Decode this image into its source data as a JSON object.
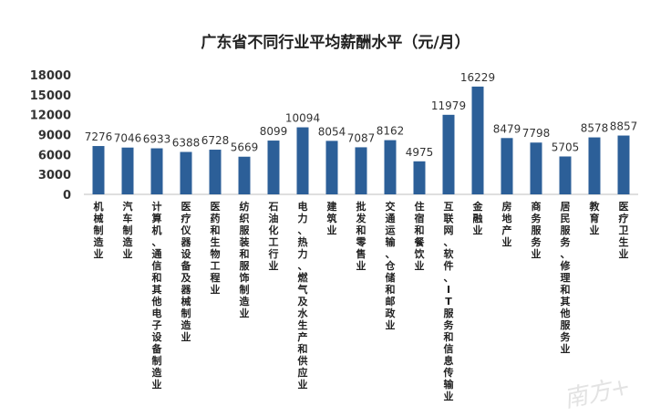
{
  "chart_data": {
    "type": "bar",
    "title": "广东省不同行业平均薪酬水平（元/月）",
    "categories": [
      "机械制造业",
      "汽车制造业",
      "计算机、通信和其他电子设备制造业",
      "医疗仪器设备及器械制造业",
      "医药和生物工程业",
      "纺织服装和服饰制造业",
      "石油化工行业",
      "电力、热力、燃气及水生产和供应业",
      "建筑业",
      "批发和零售业",
      "交通运输、仓储和邮政业",
      "住宿和餐饮业",
      "互联网、软件、IT服务和信息传输业",
      "金融业",
      "房地产业",
      "商务服务业",
      "居民服务、修理和其他服务业",
      "教育业",
      "医疗卫生业"
    ],
    "values": [
      7276,
      7046,
      6933,
      6388,
      6728,
      5669,
      8099,
      10094,
      8054,
      7087,
      8162,
      4975,
      11979,
      16229,
      8479,
      7798,
      5705,
      8578,
      8857
    ],
    "ylim": [
      0,
      18000
    ],
    "yticks": [
      0,
      3000,
      6000,
      9000,
      12000,
      15000,
      18000
    ],
    "bar_color": "#2c5f98",
    "grid": false,
    "legend": "none"
  },
  "watermark": "南方+"
}
